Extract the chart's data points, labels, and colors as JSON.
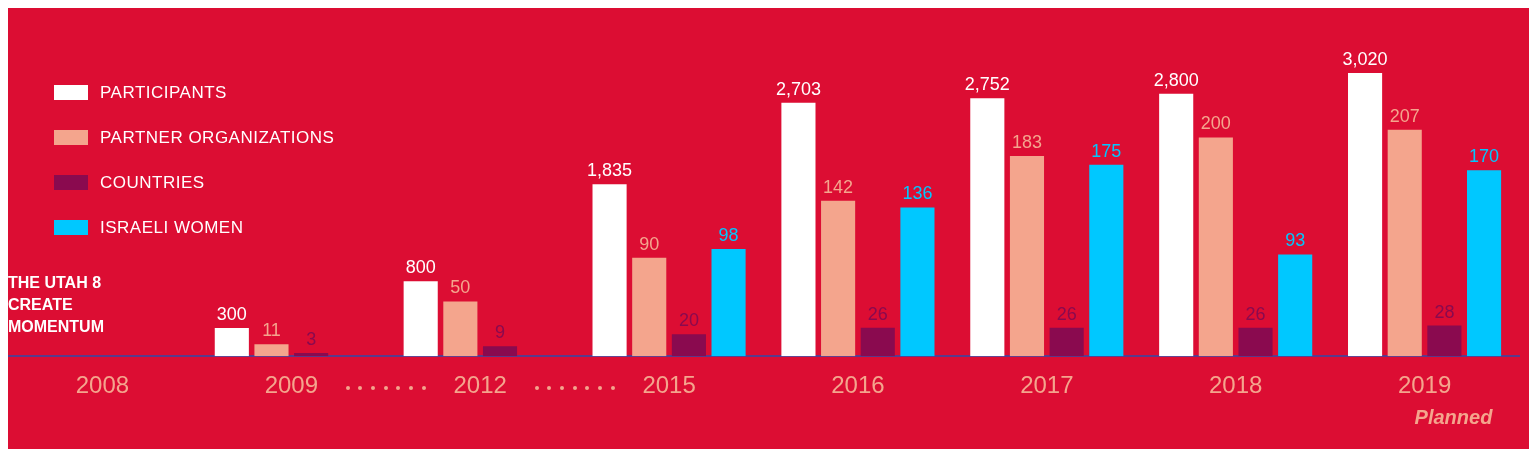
{
  "chart_data": {
    "type": "bar",
    "categories": [
      "2008",
      "2009",
      "2012",
      "2015",
      "2016",
      "2017",
      "2018",
      "2019"
    ],
    "series": [
      {
        "name": "PARTICIPANTS",
        "color": "#ffffff",
        "values": [
          null,
          300,
          800,
          1835,
          2703,
          2752,
          2800,
          3020
        ],
        "value_labels": [
          null,
          "300",
          "800",
          "1,835",
          "2,703",
          "2,752",
          "2,800",
          "3,020"
        ]
      },
      {
        "name": "PARTNER ORGANIZATIONS",
        "color": "#f4a58d",
        "axis": "y2",
        "values": [
          null,
          11,
          50,
          90,
          142,
          183,
          200,
          207
        ],
        "value_labels": [
          null,
          "11",
          "50",
          "90",
          "142",
          "183",
          "200",
          "207"
        ]
      },
      {
        "name": "COUNTRIES",
        "color": "#8a0a4f",
        "axis": "y2",
        "values": [
          null,
          3,
          9,
          20,
          26,
          26,
          26,
          28
        ],
        "value_labels": [
          null,
          "3",
          "9",
          "20",
          "26",
          "26",
          "26",
          "28"
        ]
      },
      {
        "name": "ISRAELI WOMEN",
        "color": "#00c8ff",
        "axis": "y2",
        "values": [
          null,
          null,
          null,
          98,
          136,
          175,
          93,
          170
        ],
        "value_labels": [
          null,
          null,
          null,
          "98",
          "136",
          "175",
          "93",
          "170"
        ]
      }
    ],
    "tick_labels": "x",
    "grid": false,
    "legend": "top left",
    "annotations": [
      "THE UTAH 8\nCREATE\nMOMENTUM",
      "Planned"
    ]
  }
}
